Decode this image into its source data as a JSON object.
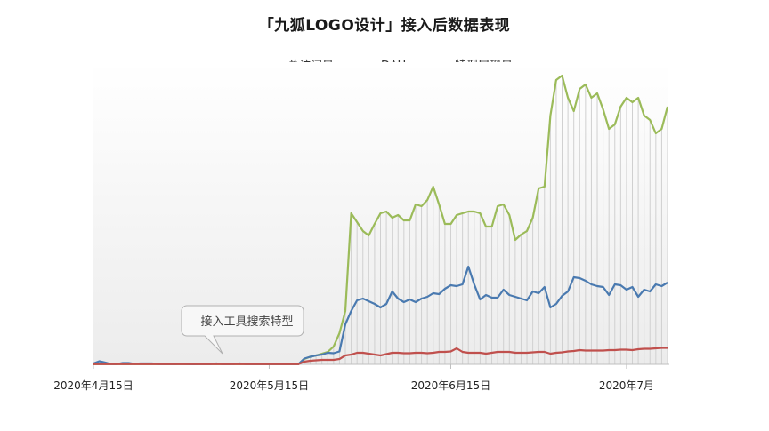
{
  "chart_data": {
    "type": "line",
    "title": "「九狐LOGO设计」接入后数据表现",
    "xlabel": "",
    "ylabel": "",
    "x_tick_labels": [
      "2020年4月15日",
      "2020年5月15日",
      "2020年6月15日",
      "2020年7月"
    ],
    "x_start": "2020-04-15",
    "x_end": "2020-07-15",
    "legend_position": "top",
    "grid": false,
    "y_axis_shown": false,
    "series": [
      {
        "name": "总访问量",
        "color": "#4a7ab0",
        "values": [
          1.0,
          3.5,
          2.0,
          0.3,
          0.3,
          1.5,
          1.5,
          0.5,
          1.0,
          1.0,
          1.0,
          0.3,
          0.3,
          0.5,
          0.3,
          0.6,
          0.3,
          0.2,
          0.3,
          0.3,
          0.3,
          1.0,
          0.3,
          0.3,
          0.5,
          1.0,
          0.3,
          0.3,
          0.3,
          0.3,
          0.3,
          0.5,
          0.3,
          0.3,
          0.3,
          0.3,
          6.5,
          8.5,
          10.0,
          11.0,
          13.0,
          12.5,
          14.5,
          45.0,
          60.0,
          72.0,
          74.0,
          71.0,
          68.0,
          64.0,
          68.0,
          82.0,
          74.0,
          70.0,
          73.0,
          70.0,
          74.0,
          76.0,
          80.0,
          79.0,
          85.0,
          89.0,
          88.0,
          90.0,
          110.0,
          90.0,
          73.0,
          78.0,
          75.0,
          75.0,
          84.0,
          78.0,
          76.0,
          74.0,
          72.0,
          82.0,
          80.0,
          87.0,
          64.0,
          68.0,
          77.0,
          82.0,
          98.0,
          97.0,
          94.0,
          90.0,
          88.0,
          87.0,
          78.0,
          90.0,
          89.0,
          84.0,
          87.0,
          76.0,
          84.0,
          82.0,
          90.0,
          88.0,
          92.0
        ],
        "note": "relative values, y axis unlabeled"
      },
      {
        "name": "DAU",
        "color": "#c0504d",
        "values": [
          0.2,
          0.2,
          0.2,
          0.2,
          0.2,
          0.2,
          0.2,
          0.2,
          0.2,
          0.2,
          0.2,
          0.2,
          0.2,
          0.2,
          0.2,
          0.2,
          0.2,
          0.2,
          0.2,
          0.2,
          0.2,
          0.2,
          0.2,
          0.2,
          0.2,
          0.2,
          0.2,
          0.2,
          0.2,
          0.2,
          0.2,
          0.2,
          0.2,
          0.2,
          0.2,
          0.2,
          3.0,
          4.0,
          4.5,
          5.0,
          5.0,
          5.0,
          6.0,
          10.0,
          11.0,
          13.0,
          13.0,
          12.0,
          11.0,
          10.0,
          11.5,
          13.0,
          13.0,
          12.5,
          12.5,
          13.0,
          13.0,
          12.5,
          13.0,
          14.0,
          14.0,
          14.5,
          18.0,
          14.0,
          13.0,
          13.0,
          13.0,
          12.0,
          13.0,
          14.0,
          14.0,
          14.0,
          13.0,
          13.0,
          13.0,
          13.5,
          14.0,
          14.0,
          12.0,
          13.0,
          13.5,
          14.5,
          15.0,
          16.0,
          15.5,
          15.5,
          15.5,
          15.5,
          16.0,
          16.0,
          16.5,
          16.5,
          16.0,
          17.0,
          17.5,
          17.5,
          18.0,
          18.5,
          18.5
        ]
      },
      {
        "name": "特型展现量",
        "color": "#9bbb59",
        "values": [
          0.2,
          0.2,
          0.2,
          0.2,
          0.2,
          0.2,
          0.2,
          0.2,
          0.2,
          0.2,
          0.2,
          0.2,
          0.2,
          0.2,
          0.2,
          0.2,
          0.2,
          0.2,
          0.2,
          0.2,
          0.2,
          0.2,
          0.2,
          0.2,
          0.2,
          0.2,
          0.2,
          0.2,
          0.2,
          0.2,
          0.2,
          0.2,
          0.2,
          0.2,
          0.2,
          0.2,
          6.0,
          8.5,
          10.0,
          12.0,
          14.0,
          20.0,
          35.0,
          60.0,
          170.0,
          160.0,
          150.0,
          145.0,
          158.0,
          170.0,
          172.0,
          165.0,
          168.0,
          162.0,
          162.0,
          180.0,
          178.0,
          185.0,
          200.0,
          180.0,
          158.0,
          158.0,
          168.0,
          170.0,
          172.0,
          172.0,
          170.0,
          155.0,
          155.0,
          178.0,
          180.0,
          168.0,
          140.0,
          146.0,
          150.0,
          165.0,
          198.0,
          200.0,
          280.0,
          320.0,
          325.0,
          300.0,
          285.0,
          310.0,
          315.0,
          300.0,
          305.0,
          287.0,
          265.0,
          270.0,
          290.0,
          300.0,
          295.0,
          300.0,
          280.0,
          275.0,
          260.0,
          265.0,
          290.0
        ]
      }
    ],
    "annotation": "接入工具搜索特型"
  }
}
